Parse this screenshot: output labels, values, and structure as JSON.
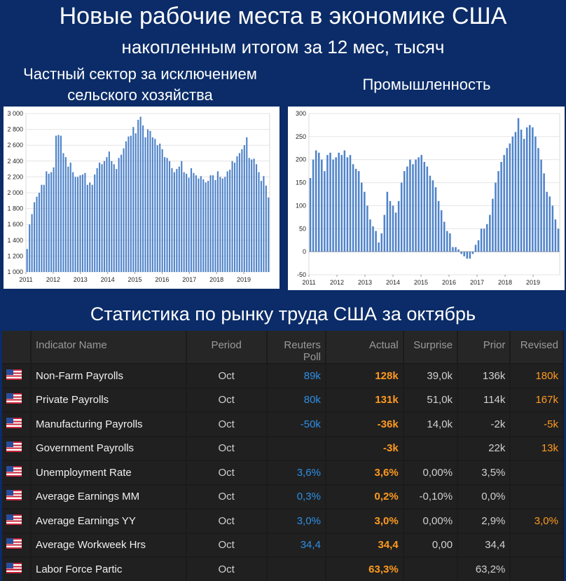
{
  "header": {
    "title": "Новые рабочие места в экономике США",
    "subtitle": "накопленным итогом за 12 мес, тысяч"
  },
  "section_title": "Статистика по рынку труда США за октябрь",
  "colors": {
    "bar": "#4f83c9",
    "actual": "#ff9a1f",
    "poll": "#2e8fe6"
  },
  "chart_data": [
    {
      "type": "bar",
      "title": "Частный сектор за исключением сельского хозяйства",
      "ylim": [
        1000,
        3000
      ],
      "yticks": [
        "1 000",
        "1 200",
        "1 400",
        "1 600",
        "1 800",
        "2 000",
        "2 200",
        "2 400",
        "2 600",
        "2 800",
        "3 000"
      ],
      "ytick_values": [
        1000,
        1200,
        1400,
        1600,
        1800,
        2000,
        2200,
        2400,
        2600,
        2800,
        3000
      ],
      "xlabels": [
        "2011",
        "2012",
        "2013",
        "2014",
        "2015",
        "2016",
        "2017",
        "2018",
        "2019"
      ],
      "x_start": 2011.0,
      "x_end": 2019.95,
      "values": [
        1290,
        1600,
        1730,
        1880,
        1950,
        2000,
        2100,
        2100,
        2270,
        2240,
        2260,
        2320,
        2720,
        2730,
        2720,
        2500,
        2450,
        2330,
        2380,
        2260,
        2200,
        2200,
        2220,
        2230,
        2250,
        2100,
        2130,
        2100,
        2230,
        2310,
        2380,
        2360,
        2400,
        2450,
        2520,
        2400,
        2360,
        2300,
        2440,
        2480,
        2560,
        2650,
        2710,
        2720,
        2830,
        2750,
        2920,
        2960,
        2850,
        2700,
        2800,
        2780,
        2700,
        2680,
        2600,
        2620,
        2550,
        2450,
        2440,
        2400,
        2310,
        2260,
        2300,
        2330,
        2400,
        2260,
        2240,
        2190,
        2310,
        2250,
        2220,
        2180,
        2210,
        2170,
        2130,
        2150,
        2220,
        2220,
        2160,
        2270,
        2200,
        2180,
        2200,
        2270,
        2290,
        2400,
        2380,
        2460,
        2500,
        2550,
        2600,
        2700,
        2440,
        2420,
        2430,
        2360,
        2260,
        2150,
        2210,
        2090,
        1940
      ]
    },
    {
      "type": "bar",
      "title": "Промышленность",
      "ylim": [
        -50,
        300
      ],
      "yticks": [
        "-50",
        "0",
        "50",
        "100",
        "150",
        "200",
        "250",
        "300"
      ],
      "ytick_values": [
        -50,
        0,
        50,
        100,
        150,
        200,
        250,
        300
      ],
      "xlabels": [
        "2011",
        "2012",
        "2013",
        "2014",
        "2015",
        "2016",
        "2017",
        "2018",
        "2019"
      ],
      "x_start": 2011.0,
      "x_end": 2019.95,
      "values": [
        160,
        200,
        220,
        215,
        200,
        175,
        210,
        215,
        200,
        205,
        215,
        210,
        220,
        205,
        210,
        190,
        180,
        175,
        150,
        130,
        100,
        70,
        55,
        45,
        20,
        40,
        80,
        130,
        110,
        100,
        85,
        110,
        150,
        175,
        185,
        200,
        190,
        200,
        205,
        210,
        195,
        185,
        165,
        155,
        140,
        110,
        90,
        65,
        45,
        40,
        10,
        10,
        5,
        -5,
        -10,
        -15,
        -15,
        -5,
        15,
        25,
        50,
        50,
        60,
        80,
        115,
        150,
        175,
        195,
        210,
        225,
        235,
        250,
        260,
        290,
        265,
        245,
        270,
        275,
        270,
        250,
        225,
        200,
        170,
        130,
        120,
        100,
        70,
        50
      ]
    }
  ],
  "table": {
    "headers": {
      "name": "Indicator Name",
      "period": "Period",
      "poll_line1": "Reuters",
      "poll_line2": "Poll",
      "actual": "Actual",
      "surprise": "Surprise",
      "prior": "Prior",
      "revised": "Revised"
    },
    "rows": [
      {
        "name": "Non-Farm Payrolls",
        "period": "Oct",
        "poll": "89k",
        "actual": "128k",
        "surprise": "39,0k",
        "prior": "136k",
        "revised": "180k"
      },
      {
        "name": "Private Payrolls",
        "period": "Oct",
        "poll": "80k",
        "actual": "131k",
        "surprise": "51,0k",
        "prior": "114k",
        "revised": "167k"
      },
      {
        "name": "Manufacturing Payrolls",
        "period": "Oct",
        "poll": "-50k",
        "actual": "-36k",
        "surprise": "14,0k",
        "prior": "-2k",
        "revised": "-5k"
      },
      {
        "name": "Government Payrolls",
        "period": "Oct",
        "poll": "",
        "actual": "-3k",
        "surprise": "",
        "prior": "22k",
        "revised": "13k"
      },
      {
        "name": "Unemployment Rate",
        "period": "Oct",
        "poll": "3,6%",
        "actual": "3,6%",
        "surprise": "0,00%",
        "prior": "3,5%",
        "revised": ""
      },
      {
        "name": "Average Earnings MM",
        "period": "Oct",
        "poll": "0,3%",
        "actual": "0,2%",
        "surprise": "-0,10%",
        "prior": "0,0%",
        "revised": ""
      },
      {
        "name": "Average Earnings YY",
        "period": "Oct",
        "poll": "3,0%",
        "actual": "3,0%",
        "surprise": "0,00%",
        "prior": "2,9%",
        "revised": "3,0%"
      },
      {
        "name": "Average Workweek Hrs",
        "period": "Oct",
        "poll": "34,4",
        "actual": "34,4",
        "surprise": "0,00",
        "prior": "34,4",
        "revised": ""
      },
      {
        "name": "Labor Force Partic",
        "period": "Oct",
        "poll": "",
        "actual": "63,3%",
        "surprise": "",
        "prior": "63,2%",
        "revised": ""
      }
    ]
  }
}
